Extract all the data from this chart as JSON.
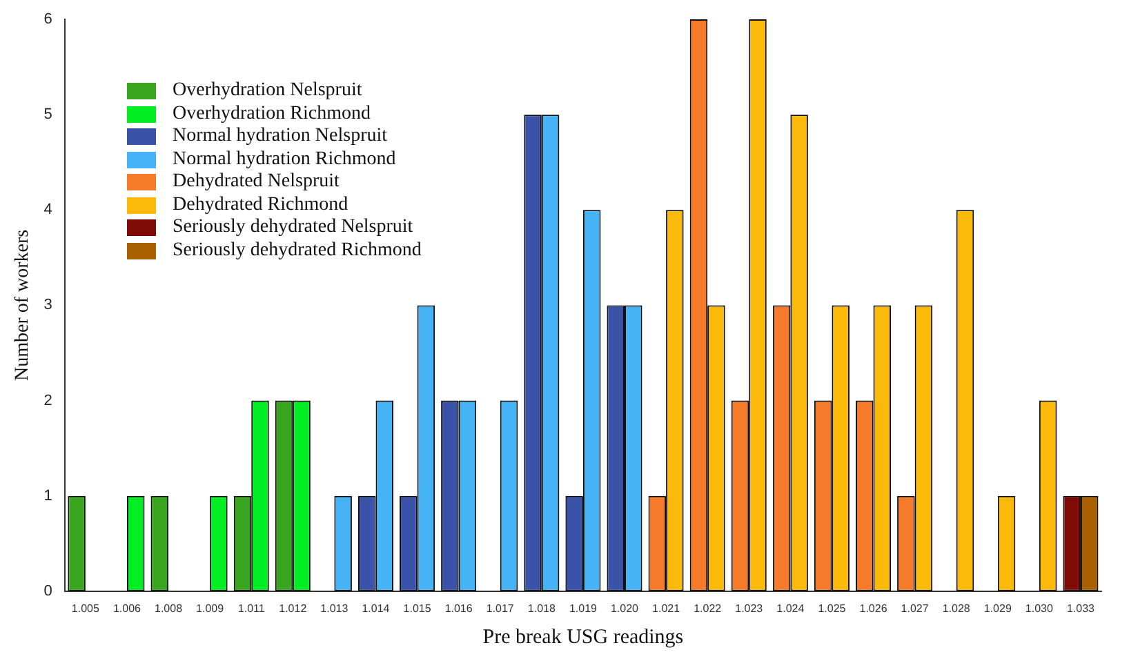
{
  "chart_data": {
    "type": "bar",
    "xlabel": "Pre break USG readings",
    "ylabel": "Number of workers",
    "categories": [
      "1.005",
      "1.006",
      "1.008",
      "1.009",
      "1.011",
      "1.012",
      "1.013",
      "1.014",
      "1.015",
      "1.016",
      "1.017",
      "1.018",
      "1.019",
      "1.020",
      "1.021",
      "1.022",
      "1.023",
      "1.024",
      "1.025",
      "1.026",
      "1.027",
      "1.028",
      "1.029",
      "1.030",
      "1.033"
    ],
    "series": [
      {
        "name": "Overhydration Nelspruit",
        "color": "#3aa51e",
        "values": [
          1,
          0,
          1,
          0,
          1,
          2,
          null,
          null,
          null,
          null,
          null,
          null,
          null,
          null,
          null,
          null,
          null,
          null,
          null,
          null,
          null,
          null,
          null,
          null,
          null
        ]
      },
      {
        "name": "Overhydration Richmond",
        "color": "#00ee22",
        "values": [
          0,
          1,
          0,
          1,
          2,
          2,
          null,
          null,
          null,
          null,
          null,
          null,
          null,
          null,
          null,
          null,
          null,
          null,
          null,
          null,
          null,
          null,
          null,
          null,
          null
        ]
      },
      {
        "name": "Normal hydration Nelspruit",
        "color": "#3a52a8",
        "values": [
          null,
          null,
          null,
          null,
          null,
          null,
          0,
          1,
          1,
          2,
          0,
          5,
          1,
          3,
          null,
          null,
          null,
          null,
          null,
          null,
          null,
          null,
          null,
          null,
          null
        ]
      },
      {
        "name": "Normal hydration Richmond",
        "color": "#45b3f5",
        "values": [
          null,
          null,
          null,
          null,
          null,
          null,
          1,
          2,
          3,
          2,
          2,
          5,
          4,
          3,
          null,
          null,
          null,
          null,
          null,
          null,
          null,
          null,
          null,
          null,
          null
        ]
      },
      {
        "name": "Dehydrated Nelspruit",
        "color": "#f57a2a",
        "values": [
          null,
          null,
          null,
          null,
          null,
          null,
          null,
          null,
          null,
          null,
          null,
          null,
          null,
          null,
          1,
          6,
          2,
          3,
          2,
          2,
          1,
          0,
          0,
          0,
          null
        ]
      },
      {
        "name": "Dehydrated Richmond",
        "color": "#fbb90a",
        "values": [
          null,
          null,
          null,
          null,
          null,
          null,
          null,
          null,
          null,
          null,
          null,
          null,
          null,
          null,
          4,
          3,
          6,
          5,
          3,
          3,
          3,
          4,
          1,
          2,
          null
        ]
      },
      {
        "name": "Seriously dehydrated Nelspruit",
        "color": "#7e0b05",
        "values": [
          null,
          null,
          null,
          null,
          null,
          null,
          null,
          null,
          null,
          null,
          null,
          null,
          null,
          null,
          null,
          null,
          null,
          null,
          null,
          null,
          null,
          null,
          null,
          null,
          1
        ]
      },
      {
        "name": "Seriously dehydrated Richmond",
        "color": "#a86000",
        "values": [
          null,
          null,
          null,
          null,
          null,
          null,
          null,
          null,
          null,
          null,
          null,
          null,
          null,
          null,
          null,
          null,
          null,
          null,
          null,
          null,
          null,
          null,
          null,
          null,
          1
        ]
      }
    ],
    "ylim": [
      0,
      6
    ],
    "yticks": [
      0,
      1,
      2,
      3,
      4,
      5,
      6
    ],
    "grid": false,
    "legend": "top left"
  }
}
